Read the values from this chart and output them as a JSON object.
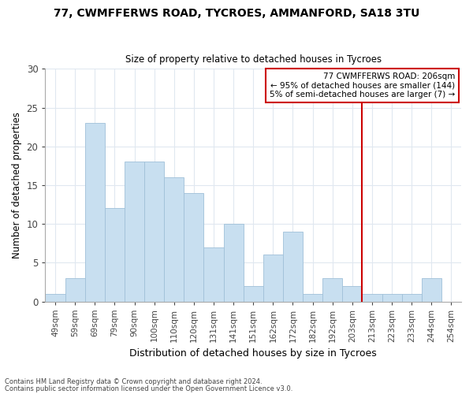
{
  "title": "77, CWMFFERWS ROAD, TYCROES, AMMANFORD, SA18 3TU",
  "subtitle": "Size of property relative to detached houses in Tycroes",
  "xlabel": "Distribution of detached houses by size in Tycroes",
  "ylabel": "Number of detached properties",
  "bar_color": "#c8dff0",
  "bar_edge_color": "#a0c0d8",
  "bin_labels": [
    "49sqm",
    "59sqm",
    "69sqm",
    "79sqm",
    "90sqm",
    "100sqm",
    "110sqm",
    "120sqm",
    "131sqm",
    "141sqm",
    "151sqm",
    "162sqm",
    "172sqm",
    "182sqm",
    "192sqm",
    "203sqm",
    "213sqm",
    "223sqm",
    "233sqm",
    "244sqm",
    "254sqm"
  ],
  "bar_heights": [
    1,
    3,
    23,
    12,
    18,
    18,
    16,
    14,
    7,
    10,
    2,
    6,
    9,
    1,
    3,
    2,
    1,
    1,
    1,
    3,
    0
  ],
  "ylim": [
    0,
    30
  ],
  "yticks": [
    0,
    5,
    10,
    15,
    20,
    25,
    30
  ],
  "vline_x_index": 15.5,
  "vline_color": "#cc0000",
  "annotation_box_color": "#cc0000",
  "annotation_title": "77 CWMFFERWS ROAD: 206sqm",
  "annotation_line1": "← 95% of detached houses are smaller (144)",
  "annotation_line2": "5% of semi-detached houses are larger (7) →",
  "footer_line1": "Contains HM Land Registry data © Crown copyright and database right 2024.",
  "footer_line2": "Contains public sector information licensed under the Open Government Licence v3.0.",
  "background_color": "#ffffff",
  "grid_color": "#e0e8f0"
}
